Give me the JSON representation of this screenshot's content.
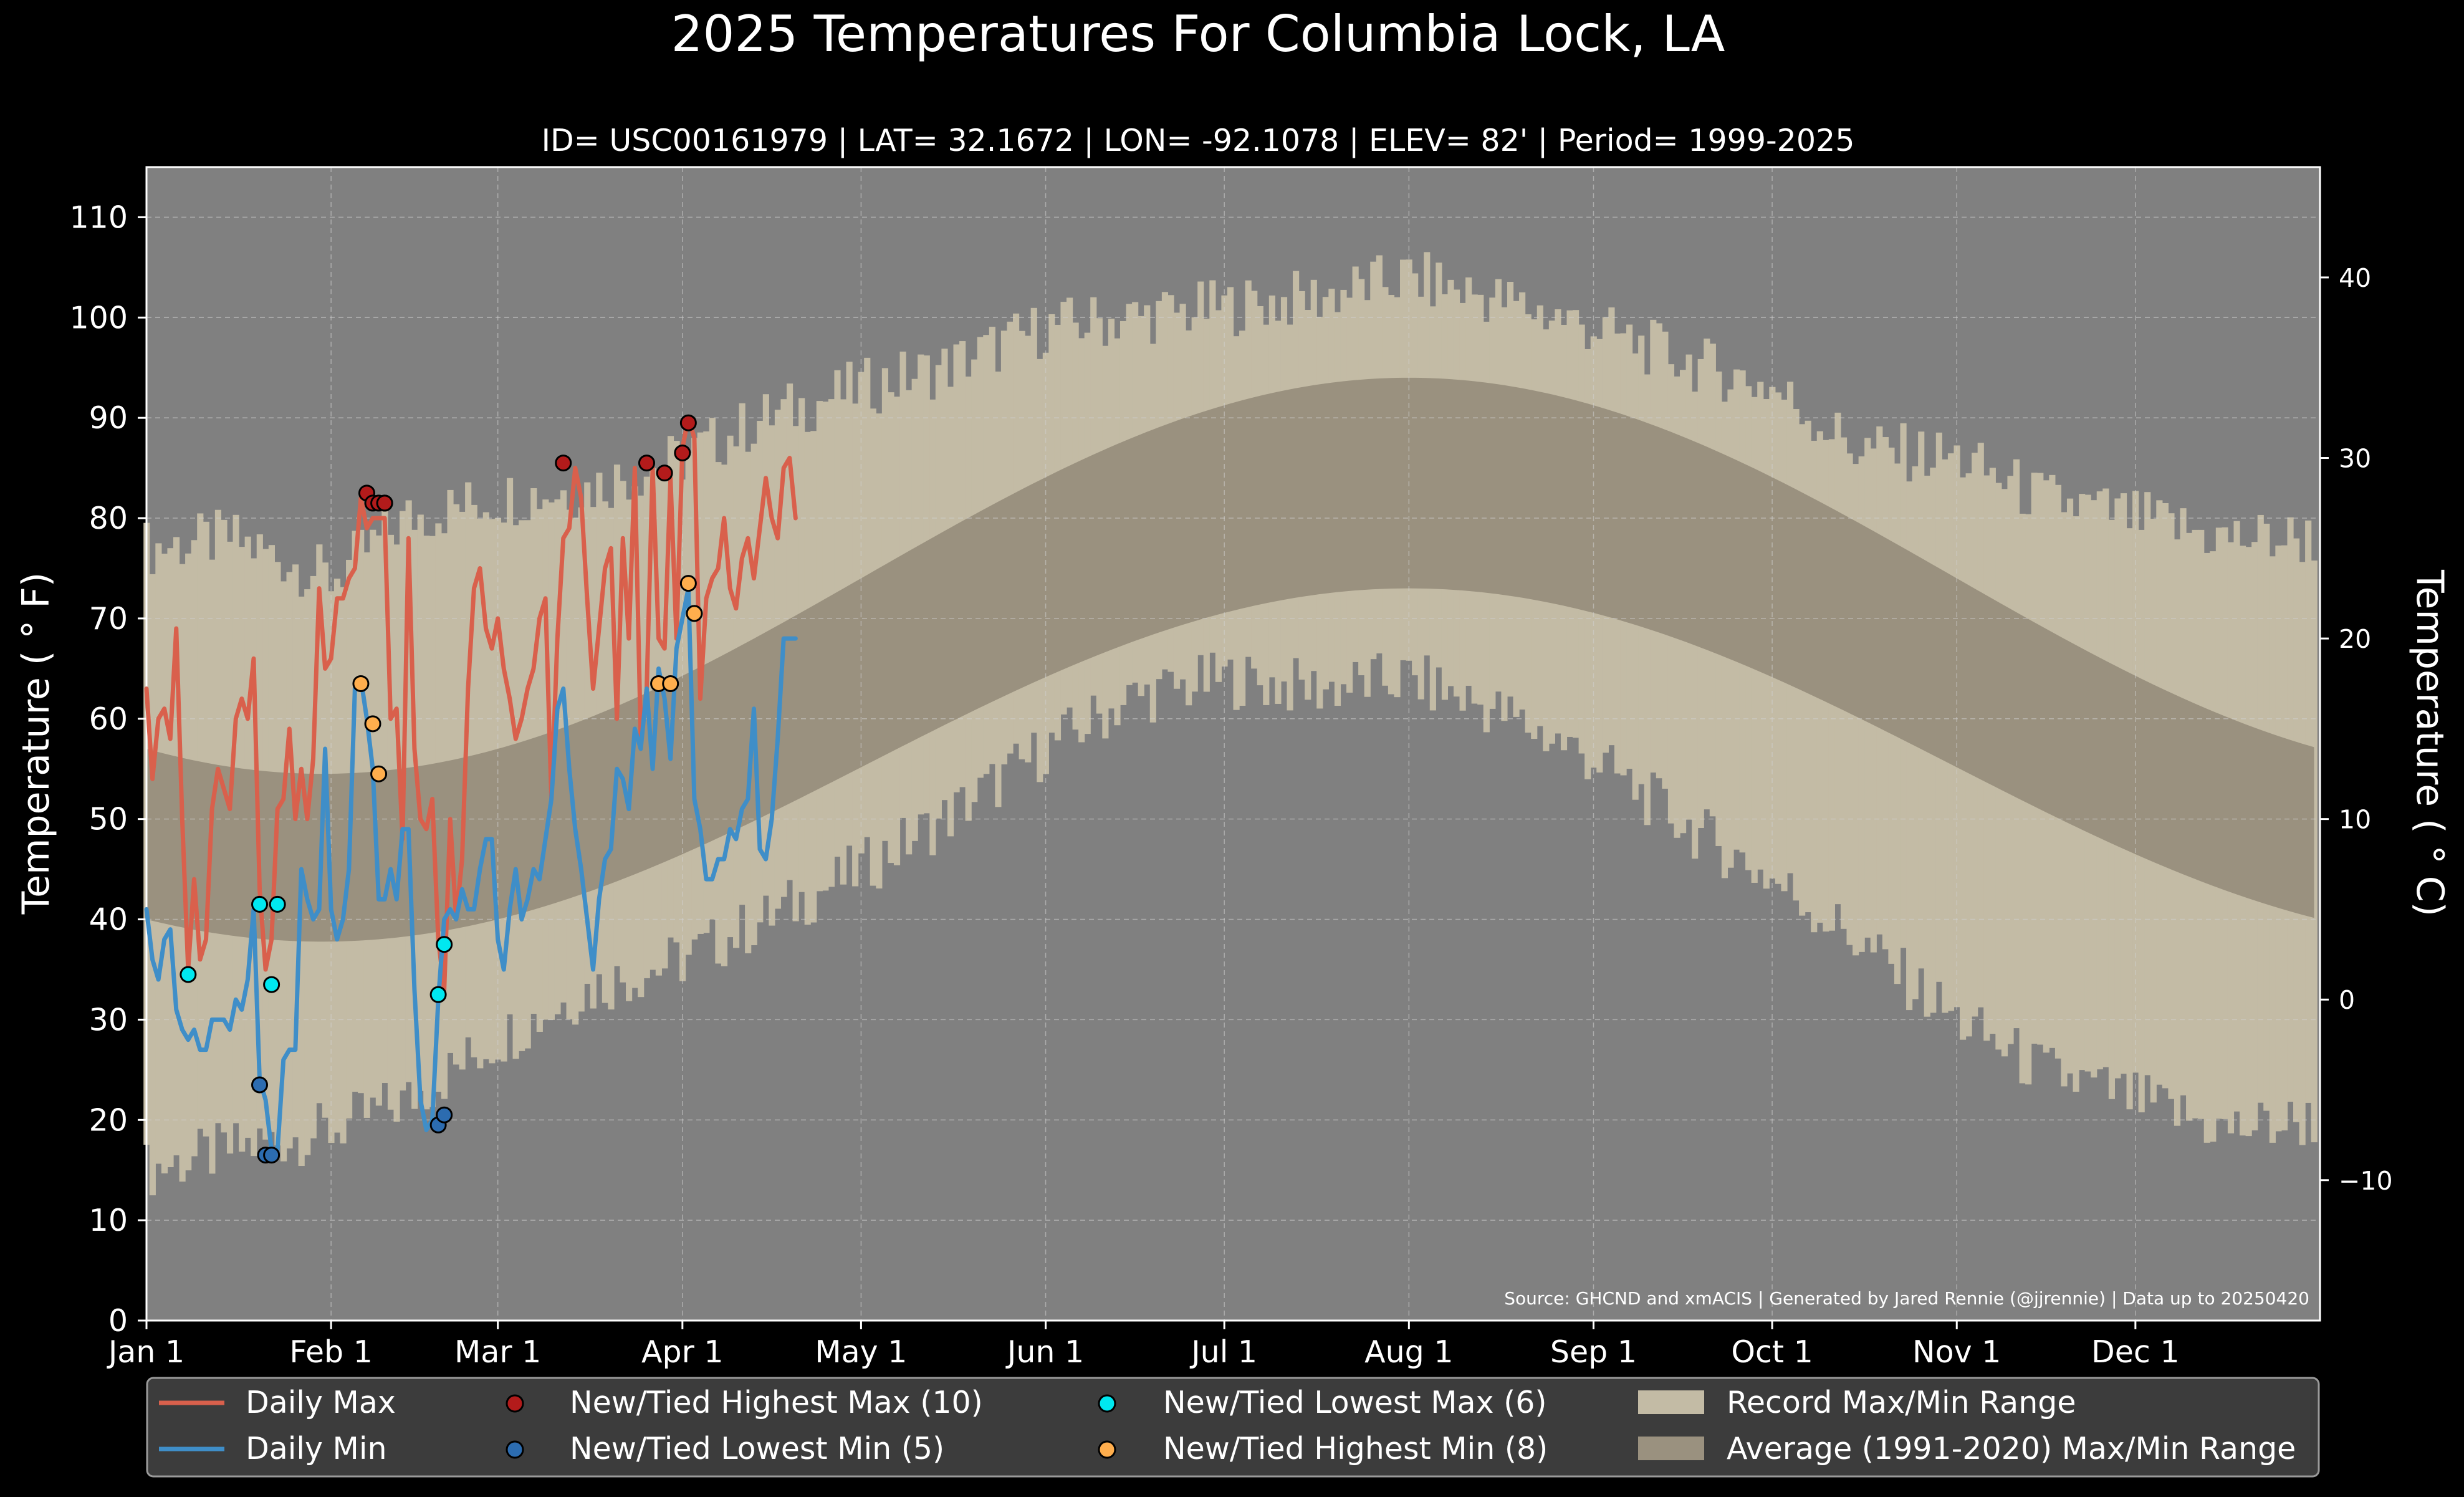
{
  "chart_data": {
    "type": "line",
    "title": "2025 Temperatures For Columbia Lock, LA",
    "subtitle": "ID= USC00161979 | LAT= 32.1672 | LON= -92.1078 | ELEV= 82' | Period= 1999-2025",
    "ylabel": "Temperature ( ° F)",
    "ylabel_right": "Temperature ( ° C)",
    "source": "Source: GHCND and xmACIS | Generated by Jared Rennie (@jjrennie) | Data up to 20250420",
    "ylim": [
      0,
      115
    ],
    "yticks": [
      0,
      10,
      20,
      30,
      40,
      50,
      60,
      70,
      80,
      90,
      100,
      110
    ],
    "yticks_right": [
      -10,
      0,
      10,
      20,
      30,
      40
    ],
    "x_axis": "day of year 2025",
    "month_ticks": [
      "Jan 1",
      "Feb 1",
      "Mar 1",
      "Apr 1",
      "May 1",
      "Jun 1",
      "Jul 1",
      "Aug 1",
      "Sep 1",
      "Oct 1",
      "Nov 1",
      "Dec 1"
    ],
    "grid": true,
    "legend_position": "bottom",
    "colors": {
      "background": "#000000",
      "plot_bg": "#808080",
      "record_range": "#c3bba5",
      "normal_range": "#9a917f",
      "daily_max": "#d9604c",
      "daily_min": "#3f8ec8",
      "new_high_max": "#b31b1b",
      "new_low_min": "#2c6cb0",
      "new_low_max": "#00e8f0",
      "new_high_min": "#ffae4d"
    },
    "series": [
      {
        "name": "Daily Max",
        "key": "daily_max",
        "x": [
          1,
          2,
          3,
          4,
          5,
          6,
          7,
          8,
          9,
          10,
          11,
          12,
          13,
          14,
          15,
          16,
          17,
          18,
          19,
          20,
          21,
          22,
          23,
          24,
          25,
          26,
          27,
          28,
          29,
          30,
          31,
          32,
          33,
          34,
          35,
          36,
          37,
          38,
          39,
          40,
          41,
          42,
          43,
          44,
          45,
          46,
          47,
          48,
          49,
          50,
          51,
          52,
          53,
          54,
          55,
          56,
          57,
          58,
          59,
          60,
          61,
          62,
          63,
          64,
          65,
          66,
          67,
          68,
          69,
          70,
          71,
          72,
          73,
          74,
          75,
          76,
          77,
          78,
          79,
          80,
          81,
          82,
          83,
          84,
          85,
          86,
          87,
          88,
          89,
          90,
          91,
          92,
          93,
          94,
          95,
          96,
          97,
          98,
          99,
          100,
          101,
          102,
          103,
          104,
          105,
          106,
          107,
          108,
          109,
          110
        ],
        "values": [
          63,
          54,
          60,
          61,
          58,
          69,
          50,
          35,
          44,
          36,
          38,
          51,
          55,
          53,
          51,
          60,
          62,
          60,
          66,
          43,
          35,
          38,
          51,
          52,
          59,
          50,
          55,
          50,
          56,
          73,
          65,
          66,
          72,
          72,
          74,
          75,
          82,
          79,
          80,
          80,
          80,
          60,
          61,
          48,
          78,
          57,
          50,
          49,
          52,
          38,
          33,
          50,
          40,
          46,
          63,
          73,
          75,
          69,
          67,
          70,
          65,
          62,
          58,
          60,
          63,
          65,
          70,
          72,
          52,
          68,
          78,
          79,
          85,
          82,
          72,
          63,
          69,
          75,
          77,
          60,
          78,
          68,
          85,
          58,
          63,
          85,
          68,
          67,
          84,
          68,
          87,
          90,
          88,
          62,
          72,
          74,
          75,
          80,
          73,
          71,
          76,
          78,
          74,
          79,
          84,
          80,
          78,
          85,
          86,
          80
        ]
      },
      {
        "name": "Daily Min",
        "key": "daily_min",
        "x": [
          1,
          2,
          3,
          4,
          5,
          6,
          7,
          8,
          9,
          10,
          11,
          12,
          13,
          14,
          15,
          16,
          17,
          18,
          19,
          20,
          21,
          22,
          23,
          24,
          25,
          26,
          27,
          28,
          29,
          30,
          31,
          32,
          33,
          34,
          35,
          36,
          37,
          38,
          39,
          40,
          41,
          42,
          43,
          44,
          45,
          46,
          47,
          48,
          49,
          50,
          51,
          52,
          53,
          54,
          55,
          56,
          57,
          58,
          59,
          60,
          61,
          62,
          63,
          64,
          65,
          66,
          67,
          68,
          69,
          70,
          71,
          72,
          73,
          74,
          75,
          76,
          77,
          78,
          79,
          80,
          81,
          82,
          83,
          84,
          85,
          86,
          87,
          88,
          89,
          90,
          91,
          92,
          93,
          94,
          95,
          96,
          97,
          98,
          99,
          100,
          101,
          102,
          103,
          104,
          105,
          106,
          107,
          108,
          109,
          110
        ],
        "values": [
          41,
          36,
          34,
          38,
          39,
          31,
          29,
          28,
          29,
          27,
          27,
          30,
          30,
          30,
          29,
          32,
          31,
          34,
          41,
          24,
          22,
          17,
          17,
          26,
          27,
          27,
          45,
          42,
          40,
          41,
          57,
          41,
          38,
          40,
          45,
          63,
          64,
          60,
          55,
          42,
          42,
          45,
          42,
          49,
          49,
          33,
          22,
          19,
          20,
          32,
          40,
          41,
          40,
          43,
          41,
          41,
          45,
          48,
          48,
          38,
          35,
          41,
          45,
          40,
          42,
          45,
          44,
          48,
          52,
          61,
          63,
          55,
          49,
          45,
          40,
          35,
          42,
          46,
          47,
          55,
          54,
          51,
          59,
          57,
          63,
          55,
          65,
          62,
          56,
          67,
          70,
          73,
          52,
          49,
          44,
          44,
          46,
          46,
          49,
          48,
          51,
          52,
          61,
          47,
          46,
          50,
          58,
          68,
          68,
          68
        ]
      }
    ],
    "markers": [
      {
        "name": "New/Tied Highest Max (10)",
        "key": "new_high_max",
        "x": [
          38,
          39,
          40,
          41,
          41,
          71,
          85,
          88,
          91,
          92
        ],
        "y": [
          82.5,
          81.5,
          81.5,
          81.5,
          81.5,
          85.5,
          85.5,
          84.5,
          86.5,
          89.5
        ]
      },
      {
        "name": "New/Tied Lowest Min (5)",
        "key": "new_low_min",
        "x": [
          20,
          21,
          22,
          50,
          51
        ],
        "y": [
          23.5,
          16.5,
          16.5,
          19.5,
          20.5
        ]
      },
      {
        "name": "New/Tied Lowest Max (6)",
        "key": "new_low_max",
        "x": [
          8,
          20,
          22,
          23,
          50,
          51
        ],
        "y": [
          34.5,
          41.5,
          33.5,
          41.5,
          32.5,
          37.5
        ]
      },
      {
        "name": "New/Tied Highest Min (8)",
        "key": "new_high_min",
        "x": [
          37,
          39,
          40,
          87,
          89,
          92,
          93,
          93
        ],
        "y": [
          63.5,
          59.5,
          54.5,
          63.5,
          63.5,
          73.5,
          70.5,
          70.5
        ]
      }
    ],
    "legend": {
      "daily_max": "Daily Max",
      "daily_min": "Daily Min",
      "new_high_max": "New/Tied Highest Max (10)",
      "new_low_min": "New/Tied Lowest Min (5)",
      "new_low_max": "New/Tied Lowest Max (6)",
      "new_high_min": "New/Tied Highest Min (8)",
      "record_range": "Record Max/Min Range",
      "normal_range": "Average (1991-2020) Max/Min Range"
    },
    "normals_daily_curve": {
      "description_source": "Average (1991-2020) Max/Min Range",
      "max_min_day_1": [
        57,
        40
      ],
      "max_peak": 94,
      "min_peak": 73
    },
    "record_max_anchor": [
      [
        1,
        77
      ],
      [
        15,
        78
      ],
      [
        32,
        74
      ],
      [
        45,
        80
      ],
      [
        60,
        82
      ],
      [
        75,
        83
      ],
      [
        91,
        86
      ],
      [
        105,
        90
      ],
      [
        121,
        93
      ],
      [
        135,
        95
      ],
      [
        152,
        99
      ],
      [
        166,
        100
      ],
      [
        182,
        101
      ],
      [
        197,
        102
      ],
      [
        213,
        104
      ],
      [
        227,
        102
      ],
      [
        244,
        99
      ],
      [
        258,
        96
      ],
      [
        274,
        93
      ],
      [
        288,
        87
      ],
      [
        305,
        86
      ],
      [
        319,
        82
      ],
      [
        335,
        80
      ],
      [
        350,
        78
      ],
      [
        365,
        78
      ]
    ],
    "record_min_anchor": [
      [
        1,
        15
      ],
      [
        15,
        17
      ],
      [
        32,
        19
      ],
      [
        45,
        22
      ],
      [
        60,
        28
      ],
      [
        75,
        33
      ],
      [
        91,
        36
      ],
      [
        105,
        40
      ],
      [
        121,
        45
      ],
      [
        135,
        50
      ],
      [
        152,
        57
      ],
      [
        166,
        62
      ],
      [
        182,
        64
      ],
      [
        197,
        63
      ],
      [
        213,
        64
      ],
      [
        227,
        61
      ],
      [
        244,
        56
      ],
      [
        258,
        50
      ],
      [
        274,
        44
      ],
      [
        288,
        38
      ],
      [
        305,
        30
      ],
      [
        319,
        25
      ],
      [
        335,
        22
      ],
      [
        350,
        19
      ],
      [
        365,
        20
      ]
    ]
  }
}
